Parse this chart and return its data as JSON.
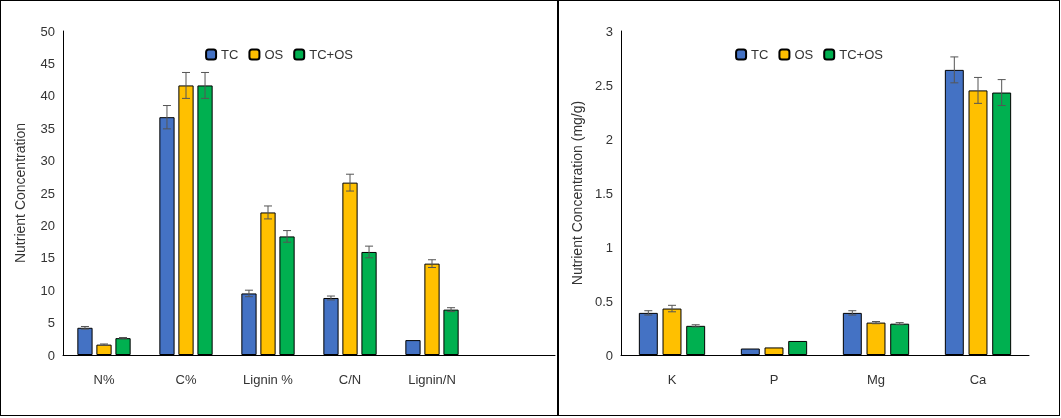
{
  "chart_data": [
    {
      "type": "bar",
      "ylabel": "Nutrient Concentration",
      "categories": [
        "N%",
        "C%",
        "Lignin %",
        "C/N",
        "Lignin/N",
        null
      ],
      "ylim": [
        0,
        50
      ],
      "yticks": [
        0,
        5,
        10,
        15,
        20,
        25,
        30,
        35,
        40,
        45,
        50
      ],
      "grid": false,
      "legend": "top",
      "series": [
        {
          "name": "TC",
          "color": "#4472c4",
          "values": [
            4.2,
            36.7,
            9.5,
            8.8,
            2.3,
            null
          ],
          "errors": [
            0.2,
            1.8,
            0.5,
            0.3,
            null,
            null
          ]
        },
        {
          "name": "OS",
          "color": "#ffc000",
          "values": [
            1.6,
            41.6,
            22.0,
            26.6,
            14.1,
            null
          ],
          "errors": [
            0.1,
            2.0,
            1.0,
            1.3,
            0.6,
            null
          ]
        },
        {
          "name": "TC+OS",
          "color": "#00b050",
          "values": [
            2.6,
            41.6,
            18.3,
            15.9,
            7.0,
            null
          ],
          "errors": [
            0.1,
            2.0,
            0.9,
            0.9,
            0.3,
            null
          ]
        }
      ]
    },
    {
      "type": "bar",
      "ylabel": "Nutrient Concentration (mg/g)",
      "categories": [
        "K",
        "P",
        "Mg",
        "Ca"
      ],
      "ylim": [
        0,
        3
      ],
      "yticks": [
        0,
        0.5,
        1,
        1.5,
        2,
        2.5,
        3
      ],
      "grid": false,
      "legend": "top",
      "series": [
        {
          "name": "TC",
          "color": "#4472c4",
          "values": [
            0.39,
            0.06,
            0.39,
            2.64
          ],
          "errors": [
            0.02,
            null,
            0.02,
            0.12
          ]
        },
        {
          "name": "OS",
          "color": "#ffc000",
          "values": [
            0.43,
            0.07,
            0.3,
            2.45
          ],
          "errors": [
            0.03,
            null,
            0.01,
            0.12
          ]
        },
        {
          "name": "TC+OS",
          "color": "#00b050",
          "values": [
            0.27,
            0.13,
            0.29,
            2.43
          ],
          "errors": [
            0.01,
            null,
            0.01,
            0.12
          ]
        }
      ]
    }
  ]
}
